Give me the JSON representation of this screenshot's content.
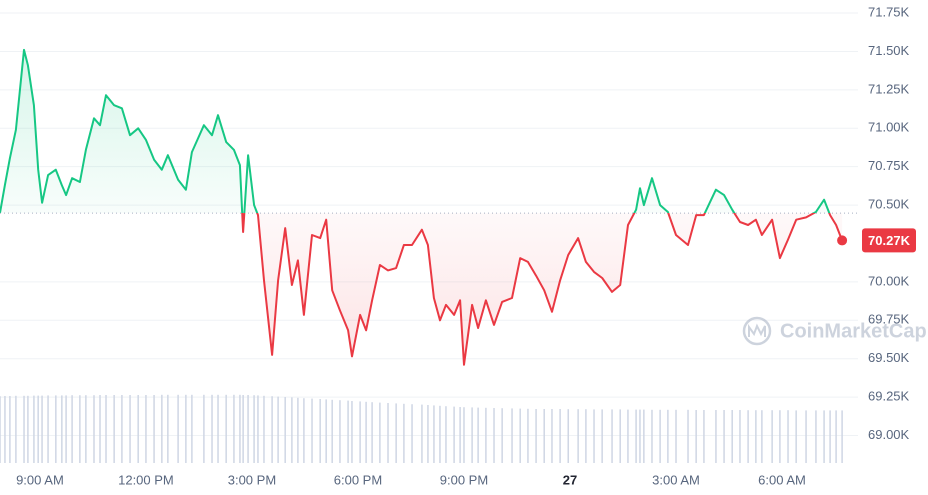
{
  "chart_data": {
    "type": "line",
    "baseline": 70448,
    "up_color": "#16c784",
    "down_color": "#ea3943",
    "grid": true,
    "watermark": "CoinMarketCap",
    "current_price": 70270,
    "current_price_label": "70.27K",
    "xlim": [
      7.87,
      32.15
    ],
    "xticks": [
      {
        "value": 9,
        "label": "9:00 AM"
      },
      {
        "value": 12,
        "label": "12:00 PM"
      },
      {
        "value": 15,
        "label": "3:00 PM"
      },
      {
        "value": 18,
        "label": "6:00 PM"
      },
      {
        "value": 21,
        "label": "9:00 PM"
      },
      {
        "value": 24,
        "label": "27"
      },
      {
        "value": 27,
        "label": "3:00 AM"
      },
      {
        "value": 30,
        "label": "6:00 AM"
      }
    ],
    "ylim": [
      68821,
      71835
    ],
    "yticks": [
      {
        "value": 71750,
        "label": "71.75K"
      },
      {
        "value": 71500,
        "label": "71.50K"
      },
      {
        "value": 71250,
        "label": "71.25K"
      },
      {
        "value": 71000,
        "label": "71.00K"
      },
      {
        "value": 70750,
        "label": "70.75K"
      },
      {
        "value": 70500,
        "label": "70.50K"
      },
      {
        "value": 70000,
        "label": "70.00K"
      },
      {
        "value": 69750,
        "label": "69.75K"
      },
      {
        "value": 69500,
        "label": "69.50K"
      },
      {
        "value": 69250,
        "label": "69.25K"
      },
      {
        "value": 69000,
        "label": "69.00K"
      }
    ],
    "x": [
      7.87,
      8.01,
      8.15,
      8.32,
      8.55,
      8.66,
      8.83,
      8.95,
      9.06,
      9.23,
      9.45,
      9.62,
      9.74,
      9.91,
      10.13,
      10.3,
      10.53,
      10.7,
      10.87,
      11.1,
      11.32,
      11.55,
      11.78,
      12.0,
      12.23,
      12.45,
      12.62,
      12.91,
      13.13,
      13.3,
      13.64,
      13.87,
      14.04,
      14.27,
      14.49,
      14.66,
      14.75,
      14.89,
      15.06,
      15.17,
      15.34,
      15.57,
      15.74,
      15.94,
      16.13,
      16.3,
      16.47,
      16.7,
      16.93,
      17.1,
      17.27,
      17.49,
      17.72,
      17.83,
      18.06,
      18.23,
      18.4,
      18.62,
      18.85,
      19.08,
      19.3,
      19.53,
      19.81,
      19.98,
      20.15,
      20.32,
      20.49,
      20.72,
      20.89,
      21.0,
      21.23,
      21.4,
      21.62,
      21.85,
      22.08,
      22.36,
      22.59,
      22.81,
      23.04,
      23.27,
      23.49,
      23.72,
      23.95,
      24.23,
      24.45,
      24.68,
      24.91,
      25.19,
      25.42,
      25.64,
      25.87,
      25.98,
      26.09,
      26.32,
      26.55,
      26.77,
      27.0,
      27.34,
      27.57,
      27.79,
      28.13,
      28.36,
      28.59,
      28.81,
      29.04,
      29.26,
      29.43,
      29.72,
      29.94,
      30.17,
      30.4,
      30.68,
      30.96,
      31.19,
      31.36,
      31.53,
      31.7
    ],
    "values": [
      70450,
      70630,
      70805,
      70990,
      71510,
      71410,
      71150,
      70730,
      70515,
      70695,
      70730,
      70630,
      70565,
      70675,
      70650,
      70860,
      71065,
      71020,
      71215,
      71150,
      71130,
      70955,
      71000,
      70925,
      70795,
      70730,
      70825,
      70665,
      70600,
      70845,
      71020,
      70955,
      71085,
      70910,
      70860,
      70760,
      70325,
      70825,
      70500,
      70435,
      70010,
      69525,
      70010,
      70350,
      69980,
      70140,
      69785,
      70305,
      70285,
      70405,
      69945,
      69815,
      69685,
      69515,
      69785,
      69685,
      69880,
      70110,
      70075,
      70090,
      70240,
      70240,
      70340,
      70240,
      69895,
      69750,
      69850,
      69785,
      69880,
      69460,
      69850,
      69700,
      69880,
      69720,
      69870,
      69895,
      70155,
      70130,
      70040,
      69945,
      69805,
      70010,
      70175,
      70285,
      70130,
      70065,
      70025,
      69935,
      69980,
      70370,
      70470,
      70610,
      70500,
      70675,
      70500,
      70455,
      70305,
      70240,
      70435,
      70435,
      70600,
      70565,
      70470,
      70390,
      70370,
      70405,
      70305,
      70405,
      70155,
      70275,
      70405,
      70420,
      70455,
      70535,
      70435,
      70370,
      70270
    ],
    "volume": [
      33.4,
      33.5,
      33.5,
      33.6,
      33.6,
      33.6,
      33.7,
      33.7,
      33.7,
      33.8,
      33.8,
      33.8,
      33.8,
      33.9,
      33.9,
      33.9,
      33.9,
      34,
      34,
      34,
      34,
      34,
      34,
      34,
      34,
      34.1,
      34.1,
      34.1,
      34.1,
      34.1,
      34.1,
      34.1,
      34.1,
      34.1,
      34.1,
      34.1,
      34,
      34,
      33.9,
      33.8,
      33.6,
      33.4,
      33.2,
      33,
      32.8,
      32.6,
      32.4,
      32.2,
      32,
      31.8,
      31.6,
      31.4,
      31.2,
      31,
      30.8,
      30.6,
      30.4,
      30.2,
      30,
      29.8,
      29.6,
      29.4,
      29.2,
      29,
      28.8,
      28.6,
      28.4,
      28.2,
      28,
      27.9,
      27.8,
      27.7,
      27.6,
      27.5,
      27.4,
      27.3,
      27.2,
      27.1,
      27,
      27,
      27,
      27,
      26.9,
      26.9,
      26.9,
      26.8,
      26.8,
      26.8,
      26.8,
      26.7,
      26.7,
      26.7,
      26.7,
      26.6,
      26.6,
      26.6,
      26.6,
      26.6,
      26.5,
      26.5,
      26.5,
      26.5,
      26.5,
      26.5,
      26.4,
      26.4,
      26.4,
      26.4,
      26.4,
      26.4,
      26.3,
      26.3,
      26.3,
      26.3,
      26.3,
      26.3,
      26.3
    ],
    "volume_color": "#cfd6e4"
  }
}
